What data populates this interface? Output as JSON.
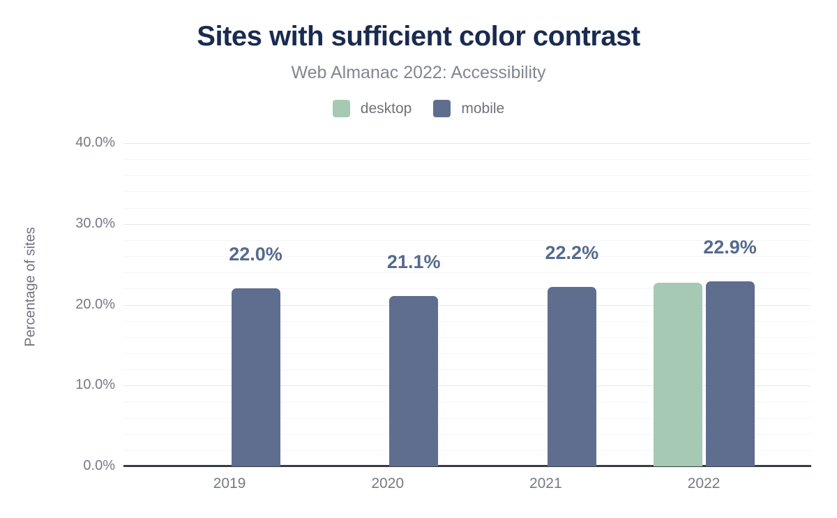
{
  "chart_data": {
    "type": "bar",
    "title": "Sites with sufficient color contrast",
    "subtitle": "Web Almanac 2022: Accessibility",
    "ylabel": "Percentage of sites",
    "xlabel": "",
    "categories": [
      "2019",
      "2020",
      "2021",
      "2022"
    ],
    "series": [
      {
        "name": "desktop",
        "color": "#a5c9b3",
        "values": [
          null,
          null,
          null,
          22.7
        ],
        "value_labels": [
          null,
          null,
          null,
          null
        ]
      },
      {
        "name": "mobile",
        "color": "#5f6e8e",
        "values": [
          22.0,
          21.1,
          22.2,
          22.9
        ],
        "value_labels": [
          "22.0%",
          "21.1%",
          "22.2%",
          "22.9%"
        ]
      }
    ],
    "ylim": [
      0,
      40
    ],
    "yticks": [
      {
        "label": "0.0%",
        "value": 0
      },
      {
        "label": "10.0%",
        "value": 10
      },
      {
        "label": "20.0%",
        "value": 20
      },
      {
        "label": "30.0%",
        "value": 30
      },
      {
        "label": "40.0%",
        "value": 40
      }
    ],
    "minor_tick_step": 2,
    "grid": true,
    "legend_position": "top"
  },
  "colors": {
    "title": "#1a2b50",
    "subtitle": "#82868f",
    "axis_text": "#757a84",
    "axis_line": "#383b44",
    "grid_major": "#e7e8eb",
    "grid_minor": "#f4f5f7",
    "value_label": "#556a8e",
    "background": "#ffffff"
  }
}
